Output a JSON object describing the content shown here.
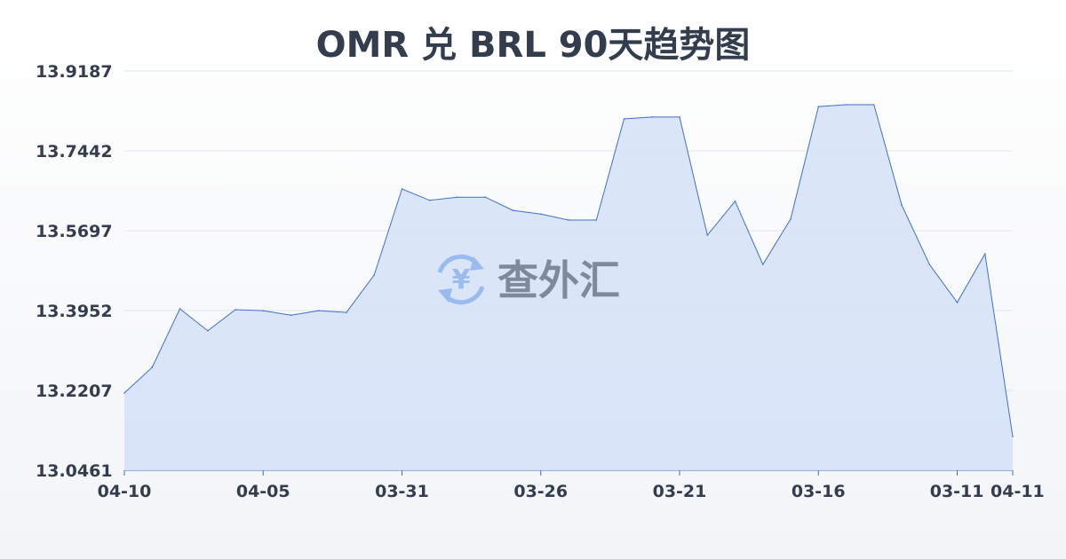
{
  "chart_data": {
    "type": "area",
    "title": "OMR 兑 BRL 90天趋势图",
    "ylim": [
      13.0461,
      13.9187
    ],
    "y_ticks": [
      "13.9187",
      "13.7442",
      "13.5697",
      "13.3952",
      "13.2207",
      "13.0461"
    ],
    "x_ticks": [
      {
        "index": 0,
        "label": "04-10"
      },
      {
        "index": 5,
        "label": "04-05"
      },
      {
        "index": 10,
        "label": "03-31"
      },
      {
        "index": 15,
        "label": "03-26"
      },
      {
        "index": 20,
        "label": "03-21"
      },
      {
        "index": 25,
        "label": "03-16"
      },
      {
        "index": 30,
        "label": "03-11"
      },
      {
        "index": 32,
        "label": "04-11"
      }
    ],
    "x": [
      "04-10",
      "04-09",
      "04-08",
      "04-07",
      "04-06",
      "04-05",
      "04-04",
      "04-03",
      "04-02",
      "04-01",
      "03-31",
      "03-30",
      "03-29",
      "03-28",
      "03-27",
      "03-26",
      "03-25",
      "03-24",
      "03-23",
      "03-22",
      "03-21",
      "03-20",
      "03-19",
      "03-18",
      "03-17",
      "03-16",
      "03-15",
      "03-14",
      "03-13",
      "03-12",
      "03-11",
      "03-10",
      "04-11"
    ],
    "values": [
      13.215,
      13.271,
      13.399,
      13.351,
      13.397,
      13.395,
      13.385,
      13.395,
      13.391,
      13.473,
      13.661,
      13.636,
      13.643,
      13.643,
      13.614,
      13.606,
      13.593,
      13.593,
      13.814,
      13.818,
      13.818,
      13.56,
      13.634,
      13.496,
      13.595,
      13.841,
      13.845,
      13.845,
      13.626,
      13.496,
      13.413,
      13.519,
      13.12
    ],
    "grid": true,
    "colors": {
      "line": "#3f6fd1",
      "fill": "#d6e2f7",
      "grid": "#e3e6ec"
    }
  },
  "watermark": {
    "text": "查外汇",
    "icon": "yen-exchange-icon"
  }
}
